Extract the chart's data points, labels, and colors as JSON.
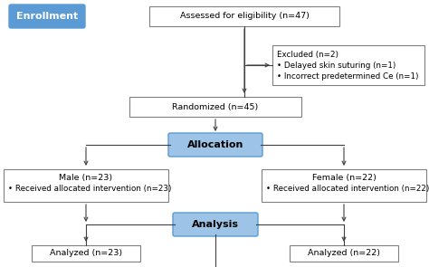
{
  "enrollment_label": "Enrollment",
  "enrollment_box_color": "#5b9bd5",
  "enrollment_text_color": "#ffffff",
  "allocation_label": "Allocation",
  "allocation_box_color": "#9dc3e6",
  "allocation_edge_color": "#5b9bd5",
  "analysis_label": "Analysis",
  "analysis_box_color": "#9dc3e6",
  "analysis_edge_color": "#5b9bd5",
  "assessed_text": "Assessed for eligibility (n=47)",
  "excluded_title": "Excluded (n=2)",
  "excluded_line1": "• Delayed skin suturing (n=1)",
  "excluded_line2": "• Incorrect predetermined Ce (n=1)",
  "randomized_text": "Randomized (n=45)",
  "male_line1": "Male (n=23)",
  "male_line2": "• Received allocated intervention (n=23)",
  "female_line1": "Female (n=22)",
  "female_line2": "• Received allocated intervention (n=22)",
  "analyzed_left": "Analyzed (n=23)",
  "analyzed_right": "Analyzed (n=22)",
  "box_edge_color": "#808080",
  "arrow_color": "#404040",
  "bg_color": "#ffffff",
  "font_size": 6.8,
  "label_font_size": 8.0
}
